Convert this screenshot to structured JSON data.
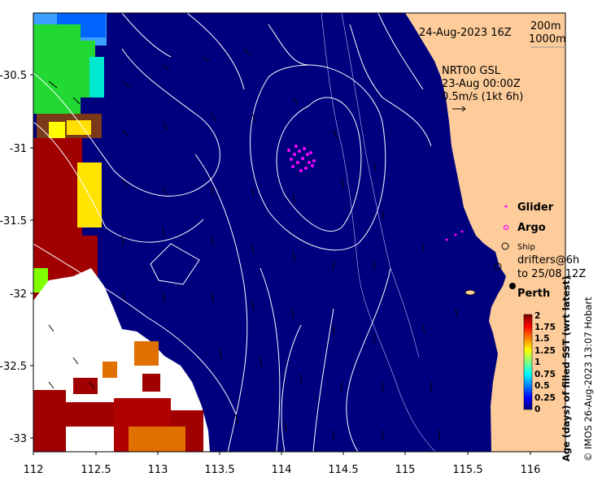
{
  "map": {
    "date_label": "24-Aug-2023 16Z",
    "isobaths": [
      "200m",
      "1000m"
    ],
    "product_lines": [
      "NRT00 GSL",
      "23-Aug 00:00Z",
      "0.5m/s (1kt 6h)"
    ],
    "x_ticks": [
      "112",
      "112.5",
      "113",
      "113.5",
      "114",
      "114.5",
      "115",
      "115.5",
      "116"
    ],
    "y_ticks": [
      "-30.5",
      "-31",
      "-31.5",
      "-32",
      "-32.5",
      "-33"
    ],
    "legend": {
      "glider": "Glider",
      "argo": "Argo",
      "ship": "Ship",
      "drifters_1": "drifters@6h",
      "drifters_2": "to 25/08 12Z",
      "city": "Perth"
    },
    "colorbar": {
      "ticks": [
        "2",
        "1.75",
        "1.5",
        "1.25",
        "1",
        "0.75",
        "0.5",
        "0.25",
        "0"
      ],
      "label": "Age (days) of filled SST (wrt latest)",
      "colors": [
        "#00007f",
        "#0000ff",
        "#007fff",
        "#00ffff",
        "#7fff7f",
        "#ffff00",
        "#ff7f00",
        "#ff0000",
        "#7f0000"
      ]
    },
    "credit": "© IMOS 26-Aug-2023 13:07 Hobart",
    "colors": {
      "ocean": "#00007f",
      "land": "#fdcc9a",
      "glider": "#ff00ff",
      "contour": "#ffffff"
    }
  }
}
